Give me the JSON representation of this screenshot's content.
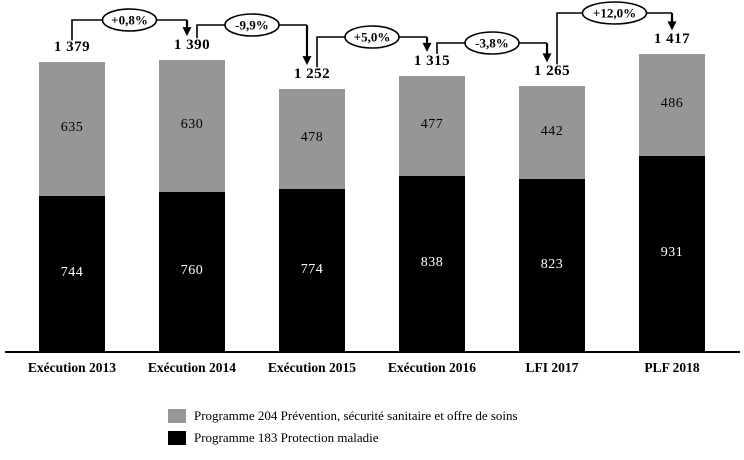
{
  "chart_data": {
    "type": "bar",
    "stacked": true,
    "title": "",
    "xlabel": "",
    "ylabel": "",
    "grid": false,
    "legend_position": "bottom",
    "ylim": [
      0,
      1450
    ],
    "categories": [
      "Exécution 2013",
      "Exécution 2014",
      "Exécution 2015",
      "Exécution 2016",
      "LFI 2017",
      "PLF 2018"
    ],
    "series": [
      {
        "name": "Programme 183 Protection maladie",
        "color": "#000000",
        "label_color": "#ffffff",
        "values": [
          744,
          760,
          774,
          838,
          823,
          931
        ]
      },
      {
        "name": "Programme 204 Prévention, sécurité sanitaire et offre de soins",
        "color": "#969696",
        "label_color": "#000000",
        "values": [
          635,
          630,
          478,
          477,
          442,
          486
        ]
      }
    ],
    "totals_display": [
      "1 379",
      "1 390",
      "1 252",
      "1 315",
      "1 265",
      "1 417"
    ],
    "totals_numeric": [
      1379,
      1390,
      1252,
      1315,
      1265,
      1417
    ],
    "change_badges": [
      {
        "from": "Exécution 2013",
        "to": "Exécution 2014",
        "label": "+0,8%"
      },
      {
        "from": "Exécution 2014",
        "to": "Exécution 2015",
        "label": "-9,9%"
      },
      {
        "from": "Exécution 2015",
        "to": "Exécution 2016",
        "label": "+5,0%"
      },
      {
        "from": "Exécution 2016",
        "to": "LFI 2017",
        "label": "-3,8%"
      },
      {
        "from": "LFI 2017",
        "to": "PLF 2018",
        "label": "+12,0%"
      }
    ]
  },
  "legend": {
    "items": [
      {
        "label": "Programme 204 Prévention, sécurité sanitaire et offre de soins",
        "color": "#969696"
      },
      {
        "label": "Programme 183 Protection maladie",
        "color": "#000000"
      }
    ]
  }
}
